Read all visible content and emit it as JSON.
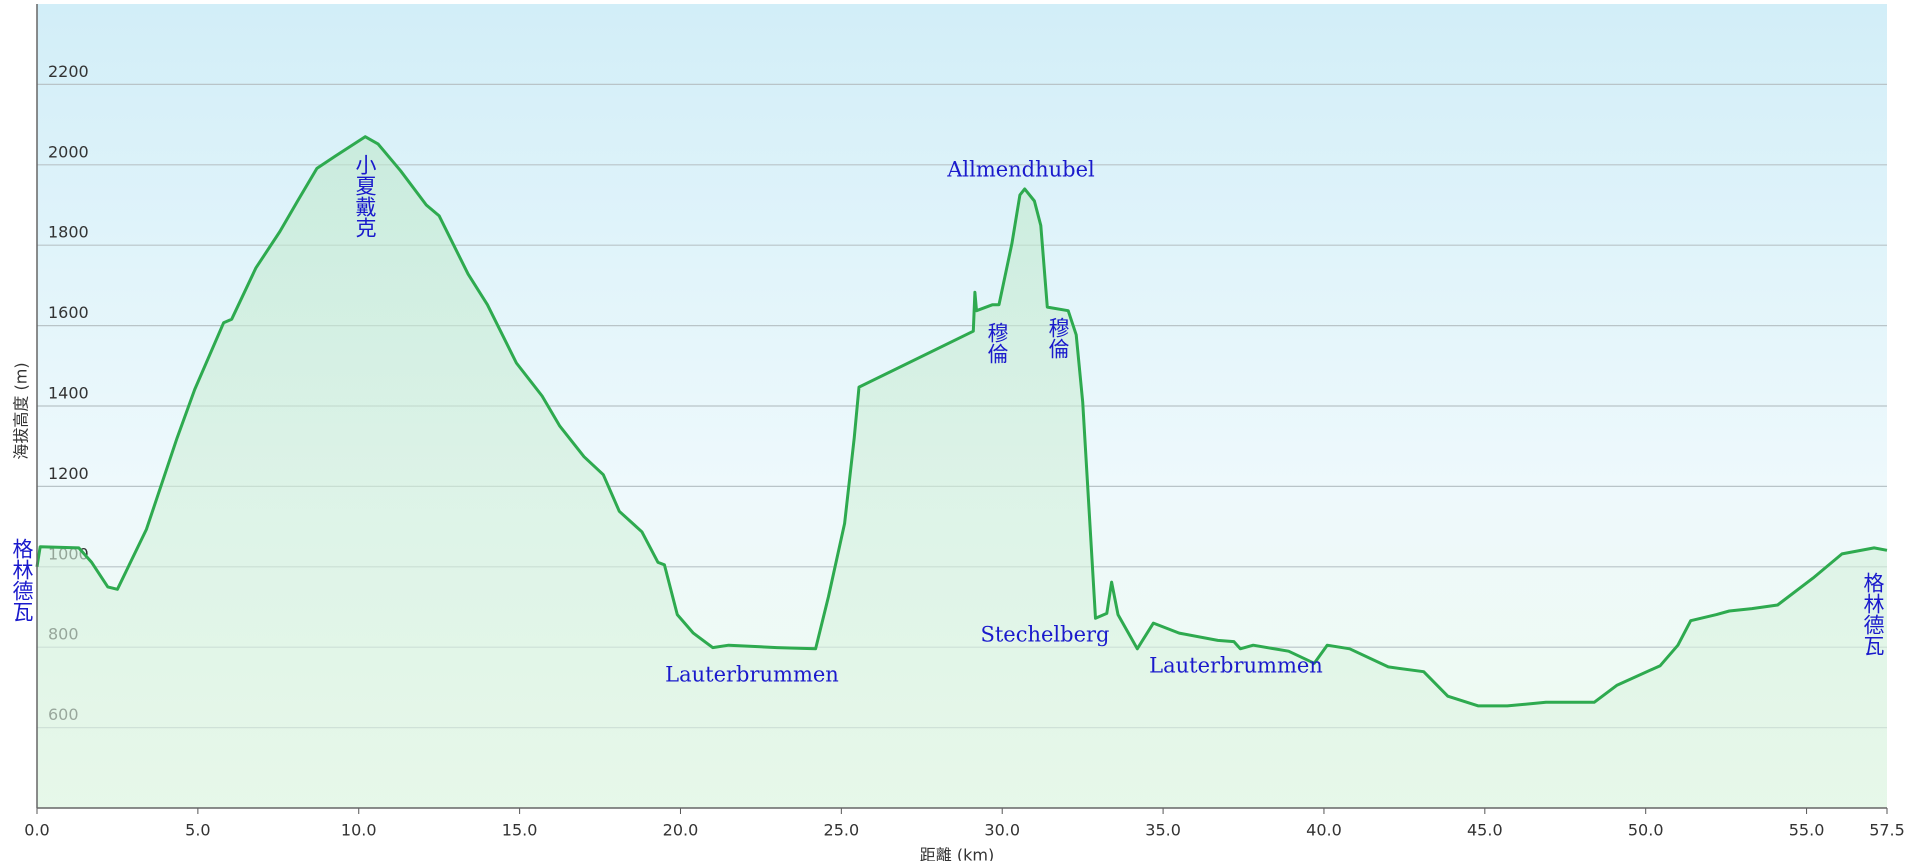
{
  "chart_data": {
    "type": "line",
    "ylabel": "海拔高度 (m)",
    "xlabel": "距離 (km)",
    "x": [
      0,
      0.1,
      1.3,
      1.7,
      2.2,
      2.5,
      3.4,
      4.35,
      4.9,
      5.8,
      6.05,
      6.8,
      7.55,
      8.1,
      8.7,
      9.26,
      10.2,
      10.6,
      11.3,
      12.1,
      12.5,
      13.4,
      14.0,
      14.9,
      15.7,
      16.25,
      17.0,
      17.6,
      18.1,
      18.8,
      19.3,
      19.5,
      19.9,
      20.4,
      21.0,
      21.5,
      23.0,
      24.2,
      24.6,
      25.1,
      25.4,
      25.55,
      29.1,
      29.15,
      29.2,
      29.7,
      29.9,
      30.3,
      30.55,
      30.7,
      31.0,
      31.2,
      31.4,
      32.05,
      32.3,
      32.5,
      32.9,
      33.25,
      33.4,
      33.6,
      34.2,
      34.7,
      35.5,
      36.7,
      37.2,
      37.4,
      37.8,
      38.9,
      39.7,
      40.1,
      40.8,
      42.0,
      43.1,
      43.85,
      44.8,
      45.7,
      46.9,
      48.4,
      49.1,
      50.45,
      51.0,
      51.4,
      52.2,
      52.6,
      53.3,
      54.1,
      55.2,
      56.1,
      57.1,
      57.5
    ],
    "values": [
      1000,
      1050,
      1047,
      1011,
      950,
      944,
      1093,
      1320,
      1441,
      1607,
      1616,
      1743,
      1834,
      1910,
      1991,
      2021,
      2070,
      2052,
      1985,
      1900,
      1873,
      1728,
      1652,
      1507,
      1425,
      1350,
      1274,
      1229,
      1138,
      1087,
      1011,
      1005,
      881,
      835,
      799,
      805,
      799,
      796,
      926,
      1108,
      1320,
      1447,
      1586,
      1683,
      1637,
      1652,
      1652,
      1804,
      1925,
      1940,
      1910,
      1849,
      1646,
      1637,
      1577,
      1410,
      872,
      884,
      962,
      881,
      796,
      860,
      835,
      817,
      814,
      796,
      805,
      790,
      760,
      805,
      796,
      751,
      739,
      678,
      654,
      654,
      663,
      663,
      705,
      754,
      805,
      866,
      881,
      890,
      896,
      905,
      972,
      1032,
      1047,
      1041
    ],
    "color": "#2eaa4f",
    "xlim": [
      0,
      57.5
    ],
    "xticks": [
      {
        "value": 0,
        "label": "0.0"
      },
      {
        "value": 5,
        "label": "5.0"
      },
      {
        "value": 10,
        "label": "10.0"
      },
      {
        "value": 15,
        "label": "15.0"
      },
      {
        "value": 20,
        "label": "20.0"
      },
      {
        "value": 25,
        "label": "25.0"
      },
      {
        "value": 30,
        "label": "30.0"
      },
      {
        "value": 35,
        "label": "35.0"
      },
      {
        "value": 40,
        "label": "40.0"
      },
      {
        "value": 45,
        "label": "45.0"
      },
      {
        "value": 50,
        "label": "50.0"
      },
      {
        "value": 55,
        "label": "55.0"
      },
      57.5
    ],
    "ylim": [
      400,
      2400
    ],
    "yticks": [
      600,
      800,
      1000,
      1200,
      1400,
      1600,
      1800,
      2000,
      2200
    ],
    "grid": true,
    "annotations": [
      "格林德瓦",
      "小夏戴克",
      "Allmendhubel",
      "穆倫",
      "穆倫",
      "Stechelberg",
      "Lauterbrummen",
      "Lauterbrummen",
      "格林德瓦"
    ]
  }
}
